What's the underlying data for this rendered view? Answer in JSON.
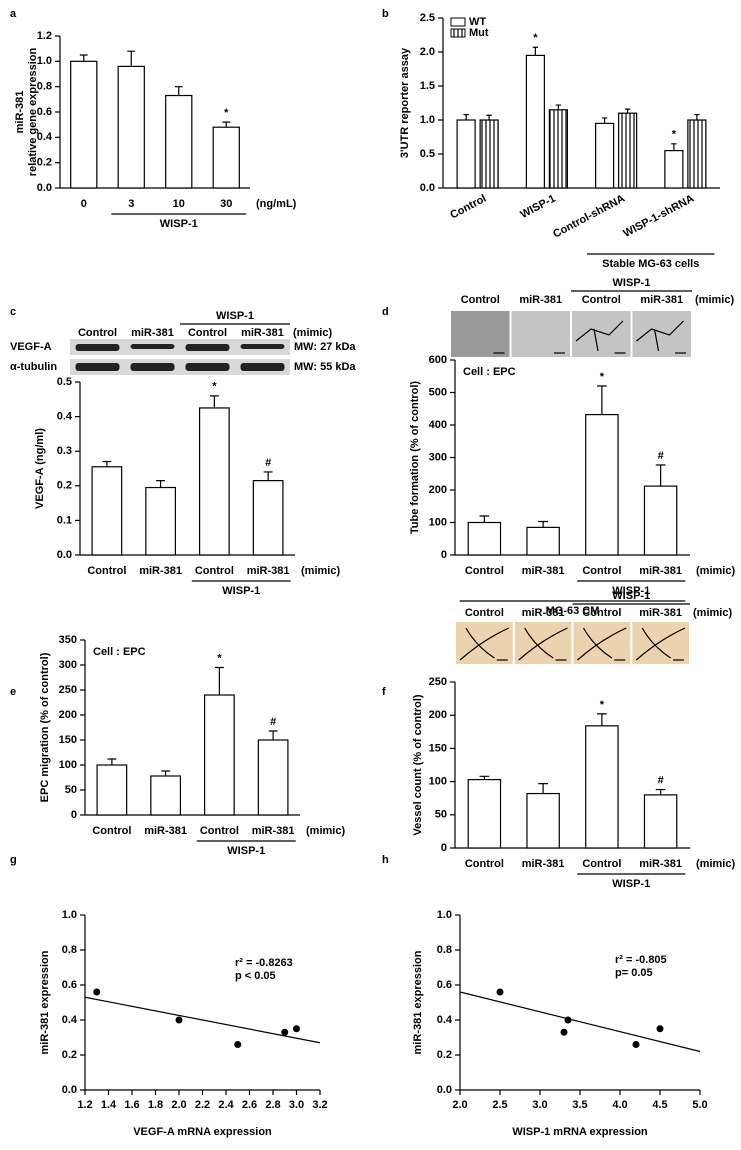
{
  "chart_data": [
    {
      "type": "bar",
      "panel": "a",
      "categories": [
        "0",
        "3",
        "10",
        "30"
      ],
      "series": [
        {
          "color": "#ffffff",
          "values": [
            1.0,
            0.96,
            0.73,
            0.48
          ],
          "errors": [
            0.05,
            0.12,
            0.07,
            0.04
          ],
          "annotations": [
            null,
            null,
            null,
            "*"
          ]
        }
      ],
      "ylim": [
        0,
        1.2
      ],
      "yticks": [
        {
          "value": 0,
          "label": "0.0"
        },
        0.2,
        0.4,
        0.6,
        0.8,
        {
          "value": 1,
          "label": "1.0"
        },
        1.2
      ],
      "ylabel": [
        "miR-381",
        "relative gene expression"
      ],
      "groups": [
        {
          "label": "WISP-1",
          "categories": [
            1,
            3
          ]
        }
      ],
      "unit_note": "(ng/mL)"
    },
    {
      "type": "bar",
      "panel": "b",
      "categories": [
        "Control",
        "WISP-1",
        "Control-shRNA",
        "WISP-1-shRNA"
      ],
      "rotate_categories": true,
      "series": [
        {
          "name": "WT",
          "color": "#ffffff",
          "values": [
            1.0,
            1.95,
            0.95,
            0.55
          ],
          "errors": [
            0.08,
            0.12,
            0.08,
            0.1
          ],
          "annotations": [
            null,
            "*",
            null,
            "*"
          ]
        },
        {
          "name": "Mut",
          "color": "#ffffff",
          "hatch": true,
          "values": [
            1.0,
            1.15,
            1.1,
            1.0
          ],
          "errors": [
            0.07,
            0.07,
            0.06,
            0.08
          ]
        }
      ],
      "ylim": [
        0,
        2.5
      ],
      "yticks": [
        {
          "value": 0,
          "label": "0.0"
        },
        0.5,
        {
          "value": 1,
          "label": "1.0"
        },
        1.5,
        {
          "value": 2,
          "label": "2.0"
        },
        2.5
      ],
      "ylabel": "3'UTR reporter assay",
      "legend": "upper left",
      "groups": [
        {
          "label": "Stable MG-63 cells",
          "categories": [
            2,
            3
          ]
        }
      ]
    },
    {
      "type": "bar",
      "panel": "c",
      "categories": [
        "Control",
        "miR-381",
        "Control",
        "miR-381"
      ],
      "series": [
        {
          "color": "#ffffff",
          "values": [
            0.255,
            0.195,
            0.425,
            0.215
          ],
          "errors": [
            0.015,
            0.02,
            0.035,
            0.025
          ],
          "annotations": [
            null,
            null,
            "*",
            "#"
          ]
        }
      ],
      "ylim": [
        0,
        0.5
      ],
      "yticks": [
        {
          "value": 0,
          "label": "0.0"
        },
        0.1,
        0.2,
        0.3,
        0.4,
        0.5
      ],
      "ylabel": "VEGF-A (ng/ml)",
      "groups": [
        {
          "label": "WISP-1",
          "categories": [
            2,
            3
          ]
        }
      ],
      "unit_note": "(mimic)",
      "header": {
        "labels": [
          "Control",
          "miR-381",
          "Control",
          "miR-381"
        ],
        "group": "WISP-1",
        "group_lanes": [
          2,
          3
        ],
        "note": "(mimic)"
      },
      "blot": [
        {
          "name": "VEGF-A",
          "mw": "MW: 27 kDa"
        },
        {
          "name": "α-tubulin",
          "mw": "MW: 55 kDa"
        }
      ]
    },
    {
      "type": "bar",
      "panel": "d",
      "categories": [
        "Control",
        "miR-381",
        "Control",
        "miR-381"
      ],
      "series": [
        {
          "color": "#ffffff",
          "values": [
            100,
            85,
            432,
            212
          ],
          "errors": [
            20,
            18,
            88,
            65
          ],
          "annotations": [
            null,
            null,
            "*",
            "#"
          ]
        }
      ],
      "ylim": [
        0,
        600
      ],
      "yticks": [
        0,
        100,
        200,
        300,
        400,
        500,
        600
      ],
      "ylabel": "Tube formation (% of control)",
      "note": "Cell : EPC",
      "groups": [
        {
          "label": "WISP-1",
          "categories": [
            2,
            3
          ]
        },
        {
          "label": "MG-63 CM",
          "categories": [
            0,
            3
          ]
        }
      ],
      "unit_note": "(mimic)",
      "header": {
        "labels": [
          "Control",
          "miR-381",
          "Control",
          "miR-381"
        ],
        "group": "WISP-1",
        "group_lanes": [
          2,
          3
        ],
        "note": "(mimic)"
      }
    },
    {
      "type": "bar",
      "panel": "e",
      "categories": [
        "Control",
        "miR-381",
        "Control",
        "miR-381"
      ],
      "series": [
        {
          "color": "#ffffff",
          "values": [
            100,
            78,
            240,
            150
          ],
          "errors": [
            12,
            10,
            55,
            18
          ],
          "annotations": [
            null,
            null,
            "*",
            "#"
          ]
        }
      ],
      "ylim": [
        0,
        350
      ],
      "yticks": [
        0,
        50,
        100,
        150,
        200,
        250,
        300,
        350
      ],
      "ylabel": "EPC migration (% of control)",
      "note": "Cell : EPC",
      "groups": [
        {
          "label": "WISP-1",
          "categories": [
            2,
            3
          ]
        }
      ],
      "unit_note": "(mimic)"
    },
    {
      "type": "bar",
      "panel": "f",
      "categories": [
        "Control",
        "miR-381",
        "Control",
        "miR-381"
      ],
      "series": [
        {
          "color": "#ffffff",
          "values": [
            103,
            82,
            184,
            80
          ],
          "errors": [
            5,
            15,
            18,
            8
          ],
          "annotations": [
            null,
            null,
            "*",
            "#"
          ]
        }
      ],
      "ylim": [
        0,
        250
      ],
      "yticks": [
        0,
        50,
        100,
        150,
        200,
        250
      ],
      "ylabel": "Vessel count (% of control)",
      "groups": [
        {
          "label": "WISP-1",
          "categories": [
            2,
            3
          ]
        }
      ],
      "unit_note": "(mimic)",
      "header": {
        "labels": [
          "Control",
          "miR-381",
          "Control",
          "miR-381"
        ],
        "group": "WISP-1",
        "group_lanes": [
          2,
          3
        ],
        "note": "(mimic)"
      }
    },
    {
      "type": "scatter",
      "panel": "g",
      "x": [
        1.3,
        2.0,
        2.5,
        2.9,
        3.0
      ],
      "y": [
        0.56,
        0.4,
        0.26,
        0.33,
        0.35
      ],
      "xlim": [
        1.2,
        3.2
      ],
      "xticks": [
        1.2,
        1.4,
        1.6,
        1.8,
        {
          "value": 2,
          "label": "2.0"
        },
        2.2,
        2.4,
        2.6,
        2.8,
        {
          "value": 3,
          "label": "3.0"
        },
        3.2
      ],
      "ylim": [
        0,
        1
      ],
      "yticks": [
        {
          "value": 0,
          "label": "0.0"
        },
        0.2,
        0.4,
        0.6,
        0.8,
        {
          "value": 1,
          "label": "1.0"
        }
      ],
      "fit": {
        "x": [
          1.2,
          3.2
        ],
        "y": [
          0.53,
          0.27
        ]
      },
      "stats": [
        "r² = -0.8263",
        "p < 0.05"
      ],
      "xlabel": "VEGF-A mRNA expression",
      "ylabel": "miR-381 expression"
    },
    {
      "type": "scatter",
      "panel": "h",
      "x": [
        2.5,
        3.3,
        3.35,
        4.2,
        4.5
      ],
      "y": [
        0.56,
        0.33,
        0.4,
        0.26,
        0.35
      ],
      "xlim": [
        2,
        5
      ],
      "xticks": [
        {
          "value": 2,
          "label": "2.0"
        },
        2.5,
        {
          "value": 3,
          "label": "3.0"
        },
        3.5,
        {
          "value": 4,
          "label": "4.0"
        },
        4.5,
        {
          "value": 5,
          "label": "5.0"
        }
      ],
      "ylim": [
        0,
        1
      ],
      "yticks": [
        {
          "value": 0,
          "label": "0.0"
        },
        0.2,
        0.4,
        0.6,
        0.8,
        {
          "value": 1,
          "label": "1.0"
        }
      ],
      "fit": {
        "x": [
          2,
          5
        ],
        "y": [
          0.56,
          0.22
        ]
      },
      "stats": [
        "r² = -0.805",
        "p= 0.05"
      ],
      "xlabel": "WISP-1 mRNA expression",
      "ylabel": "miR-381 expression"
    }
  ]
}
